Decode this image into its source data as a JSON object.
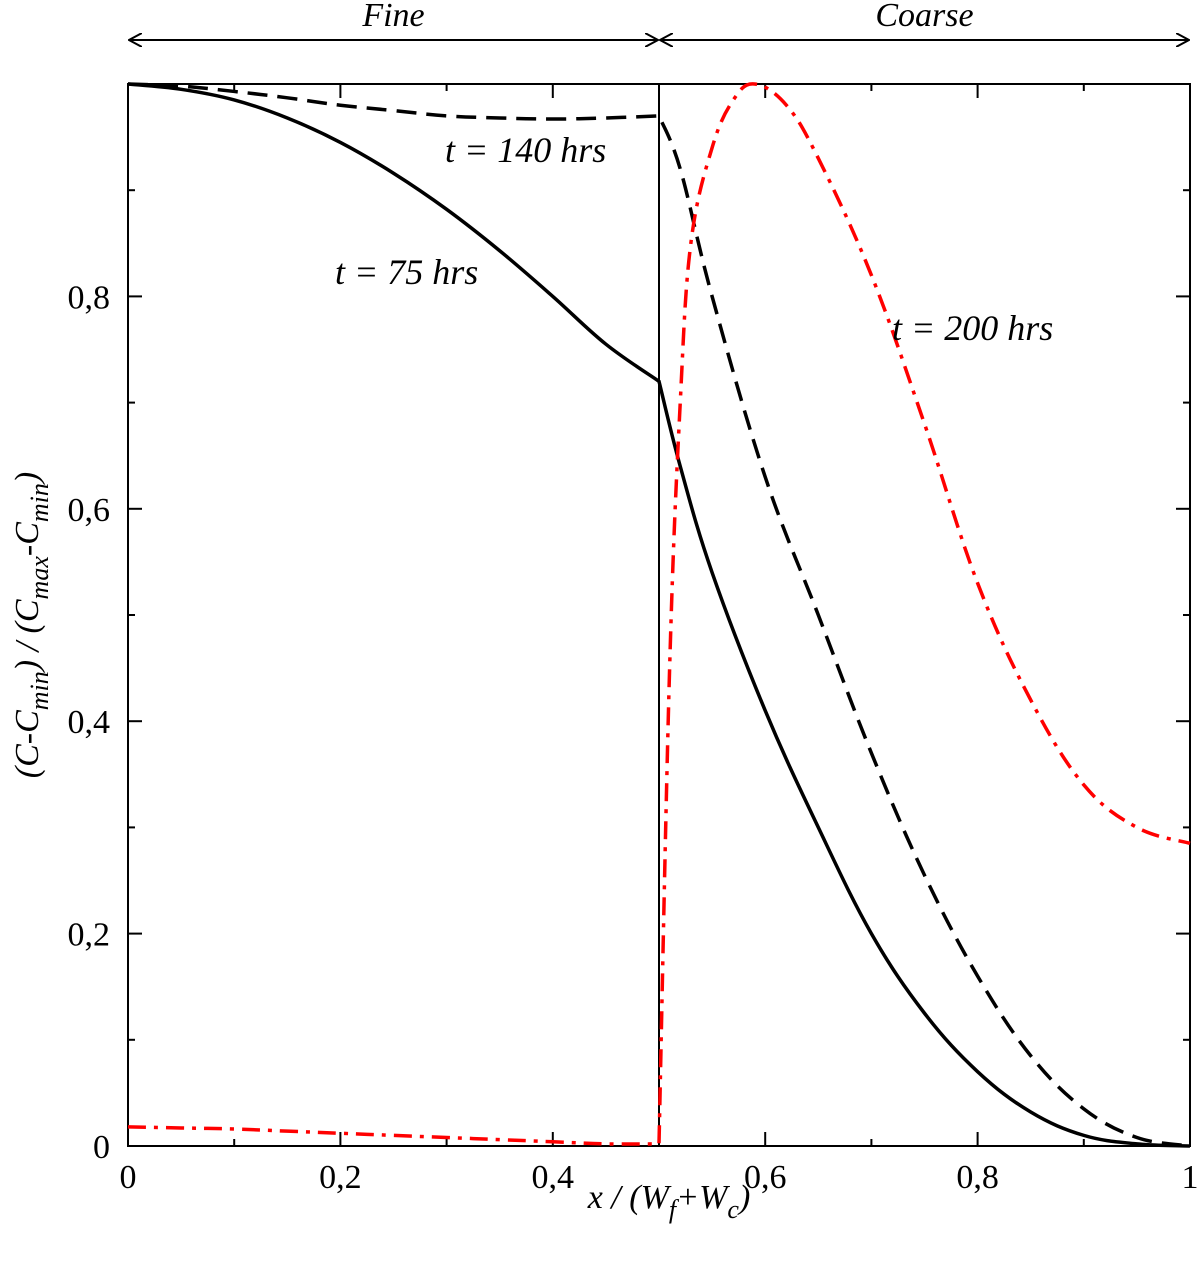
{
  "chart_data": {
    "type": "line",
    "xlabel": "x / (W_f+W_c)",
    "ylabel": "(C-C_min) / (C_max-C_min)",
    "xlim": [
      0,
      1
    ],
    "ylim": [
      0,
      1
    ],
    "x_ticks": [
      "0",
      "0,2",
      "0,4",
      "0,6",
      "0,8",
      "1"
    ],
    "y_ticks": [
      "0",
      "0,2",
      "0,4",
      "0,6",
      "0,8"
    ],
    "grid": false,
    "regions": [
      {
        "label": "Fine",
        "x_range": [
          0,
          0.5
        ]
      },
      {
        "label": "Coarse",
        "x_range": [
          0.5,
          1
        ]
      }
    ],
    "interface_x": 0.5,
    "series": [
      {
        "name": "t = 75 hrs",
        "color": "#000000",
        "dash": "solid",
        "x": [
          0,
          0.05,
          0.1,
          0.15,
          0.2,
          0.25,
          0.3,
          0.35,
          0.4,
          0.45,
          0.5,
          0.52,
          0.55,
          0.6,
          0.65,
          0.7,
          0.75,
          0.8,
          0.85,
          0.9,
          0.95,
          1.0
        ],
        "y": [
          1.0,
          0.995,
          0.985,
          0.968,
          0.945,
          0.916,
          0.882,
          0.843,
          0.8,
          0.755,
          0.72,
          0.64,
          0.54,
          0.41,
          0.3,
          0.2,
          0.125,
          0.07,
          0.032,
          0.01,
          0.002,
          0.0
        ]
      },
      {
        "name": "t = 140 hrs",
        "color": "#000000",
        "dash": "dashed",
        "x": [
          0,
          0.05,
          0.1,
          0.15,
          0.2,
          0.25,
          0.3,
          0.35,
          0.4,
          0.45,
          0.5,
          0.52,
          0.55,
          0.6,
          0.65,
          0.7,
          0.75,
          0.8,
          0.85,
          0.9,
          0.95,
          1.0
        ],
        "y": [
          1.0,
          0.998,
          0.993,
          0.987,
          0.98,
          0.975,
          0.97,
          0.968,
          0.967,
          0.968,
          0.97,
          0.92,
          0.8,
          0.63,
          0.5,
          0.37,
          0.255,
          0.16,
          0.085,
          0.035,
          0.008,
          0.0
        ]
      },
      {
        "name": "t = 200 hrs",
        "color": "#ff0000",
        "dash": "dashdot",
        "x": [
          0,
          0.05,
          0.1,
          0.15,
          0.2,
          0.25,
          0.3,
          0.35,
          0.4,
          0.45,
          0.5,
          0.51,
          0.52,
          0.53,
          0.55,
          0.57,
          0.59,
          0.62,
          0.65,
          0.7,
          0.75,
          0.8,
          0.85,
          0.9,
          0.95,
          1.0
        ],
        "y": [
          0.018,
          0.017,
          0.016,
          0.014,
          0.012,
          0.01,
          0.008,
          0.006,
          0.004,
          0.002,
          0.002,
          0.45,
          0.7,
          0.85,
          0.94,
          0.985,
          1.0,
          0.98,
          0.93,
          0.82,
          0.68,
          0.53,
          0.42,
          0.34,
          0.3,
          0.285
        ]
      }
    ],
    "labels": {
      "t75": "t = 75 hrs",
      "t140": "t = 140 hrs",
      "t200": "t = 200 hrs"
    }
  }
}
